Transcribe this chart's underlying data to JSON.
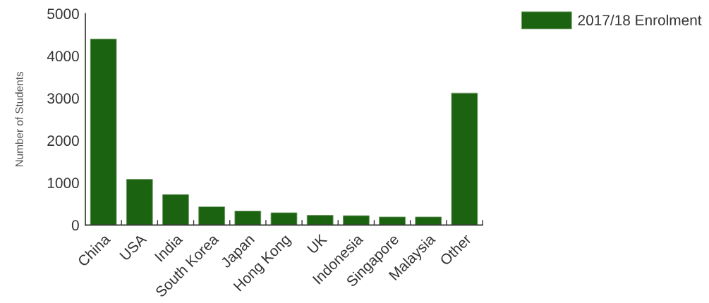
{
  "chart_data": {
    "type": "bar",
    "ylabel": "Number of Students",
    "categories": [
      "China",
      "USA",
      "India",
      "South Korea",
      "Japan",
      "Hong Kong",
      "UK",
      "Indonesia",
      "Singapore",
      "Malaysia",
      "Other"
    ],
    "series": [
      {
        "name": "2017/18 Enrolment",
        "color": "#1b6311",
        "values": [
          4400,
          1080,
          720,
          430,
          330,
          290,
          230,
          220,
          190,
          190,
          3120
        ]
      }
    ],
    "ylim": [
      0,
      5000
    ],
    "yticks": [
      0,
      1000,
      2000,
      3000,
      4000,
      5000
    ],
    "legend": "top right"
  }
}
